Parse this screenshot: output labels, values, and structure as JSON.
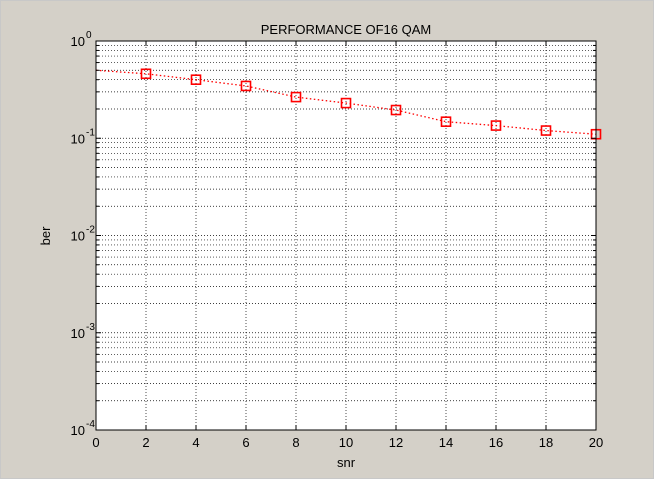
{
  "chart_data": {
    "type": "line",
    "title": "PERFORMANCE OF16 QAM",
    "xlabel": "snr",
    "ylabel": "ber",
    "xlim": [
      0,
      20
    ],
    "ylim": [
      0.0001,
      1
    ],
    "yscale": "log",
    "grid": true,
    "x_ticks": [
      0,
      2,
      4,
      6,
      8,
      10,
      12,
      14,
      16,
      18,
      20
    ],
    "y_ticks": [
      {
        "base": "10",
        "exp": "-4",
        "value": 0.0001
      },
      {
        "base": "10",
        "exp": "-3",
        "value": 0.001
      },
      {
        "base": "10",
        "exp": "-2",
        "value": 0.01
      },
      {
        "base": "10",
        "exp": "-1",
        "value": 0.1
      },
      {
        "base": "10",
        "exp": "0",
        "value": 1
      }
    ],
    "series": [
      {
        "line_color": "#ff0000",
        "line_style": "dotted",
        "marker": "square",
        "x": [
          0,
          2,
          4,
          6,
          8,
          10,
          12,
          14,
          16,
          18,
          20
        ],
        "y": [
          0.5,
          0.46,
          0.4,
          0.345,
          0.265,
          0.23,
          0.195,
          0.148,
          0.135,
          0.12,
          0.11
        ],
        "marker_x": [
          2,
          4,
          6,
          8,
          10,
          12,
          14,
          16,
          18,
          20
        ]
      }
    ]
  }
}
